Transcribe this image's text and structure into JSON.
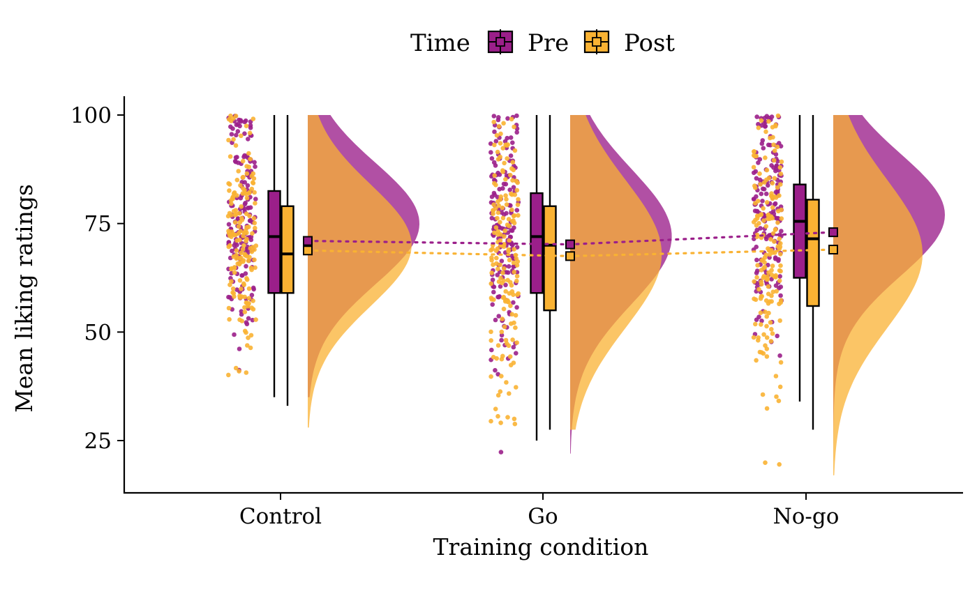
{
  "chart_data": {
    "type": "raincloud",
    "xlabel": "Training condition",
    "ylabel": "Mean liking ratings",
    "categories": [
      "Control",
      "Go",
      "No-go"
    ],
    "ylim": [
      13,
      104
    ],
    "yticks": [
      25,
      50,
      75,
      100
    ],
    "legend": {
      "title": "Time",
      "position": "top",
      "entries": [
        "Pre",
        "Post"
      ]
    },
    "series": [
      {
        "name": "Pre",
        "color": "#9B1F8A",
        "boxplot": [
          {
            "category": "Control",
            "min": 35,
            "q1": 59,
            "median": 72,
            "q3": 82.5,
            "max": 100
          },
          {
            "category": "Go",
            "min": 25,
            "q1": 59,
            "median": 72,
            "q3": 82,
            "max": 100
          },
          {
            "category": "No-go",
            "min": 34,
            "q1": 62.5,
            "median": 75.5,
            "q3": 84,
            "max": 100
          }
        ],
        "means": [
          71,
          70.2,
          73
        ],
        "density": [
          {
            "category": "Control",
            "min": 35,
            "max": 100,
            "mode": 75,
            "sd": 14,
            "peak": 1.0
          },
          {
            "category": "Go",
            "min": 22,
            "max": 100,
            "mode": 72,
            "sd": 15.5,
            "peak": 0.91
          },
          {
            "category": "No-go",
            "min": 20,
            "max": 100,
            "mode": 77,
            "sd": 14,
            "peak": 1.0
          }
        ]
      },
      {
        "name": "Post",
        "color": "#F9B233",
        "boxplot": [
          {
            "category": "Control",
            "min": 33,
            "q1": 59,
            "median": 68,
            "q3": 79,
            "max": 100
          },
          {
            "category": "Go",
            "min": 27.5,
            "q1": 55,
            "median": 70,
            "q3": 79,
            "max": 100
          },
          {
            "category": "No-go",
            "min": 27.5,
            "q1": 56,
            "median": 71.5,
            "q3": 80.5,
            "max": 100
          }
        ],
        "means": [
          68.8,
          67.5,
          69
        ],
        "density": [
          {
            "category": "Control",
            "min": 28,
            "max": 100,
            "mode": 70,
            "sd": 14,
            "peak": 0.93
          },
          {
            "category": "Go",
            "min": 27.5,
            "max": 100,
            "mode": 68,
            "sd": 17,
            "peak": 0.82
          },
          {
            "category": "No-go",
            "min": 17,
            "max": 100,
            "mode": 68,
            "sd": 17,
            "peak": 0.8
          }
        ]
      }
    ],
    "points_per_group": 170
  }
}
